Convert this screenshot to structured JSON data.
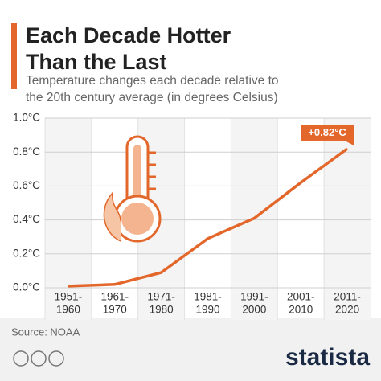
{
  "chart_data": {
    "type": "line",
    "title_lines": [
      "Each Decade Hotter",
      "Than the Last"
    ],
    "subtitle_lines": [
      "Temperature changes each decade relative to",
      "the 20th century average (in degrees Celsius)"
    ],
    "categories": [
      [
        "1951-",
        "1960"
      ],
      [
        "1961-",
        "1970"
      ],
      [
        "1971-",
        "1980"
      ],
      [
        "1981-",
        "1990"
      ],
      [
        "1991-",
        "2000"
      ],
      [
        "2001-",
        "2010"
      ],
      [
        "2011-",
        "2020"
      ]
    ],
    "values": [
      0.01,
      0.02,
      0.09,
      0.29,
      0.41,
      0.62,
      0.82
    ],
    "value_labels": [
      null,
      null,
      null,
      null,
      null,
      null,
      "+0.82°C"
    ],
    "color": "#e3672b",
    "ylim": [
      0,
      1
    ],
    "yticks": [
      {
        "value": 0,
        "label": "0.0°C"
      },
      {
        "value": 0.2,
        "label": "0.2°C"
      },
      {
        "value": 0.4,
        "label": "0.4°C"
      },
      {
        "value": 0.6,
        "label": "0.6°C"
      },
      {
        "value": 0.8,
        "label": "0.8°C"
      },
      {
        "value": 1,
        "label": "1.0°C"
      }
    ],
    "grid": true,
    "source": "Source: NOAA",
    "brand": "statista"
  }
}
